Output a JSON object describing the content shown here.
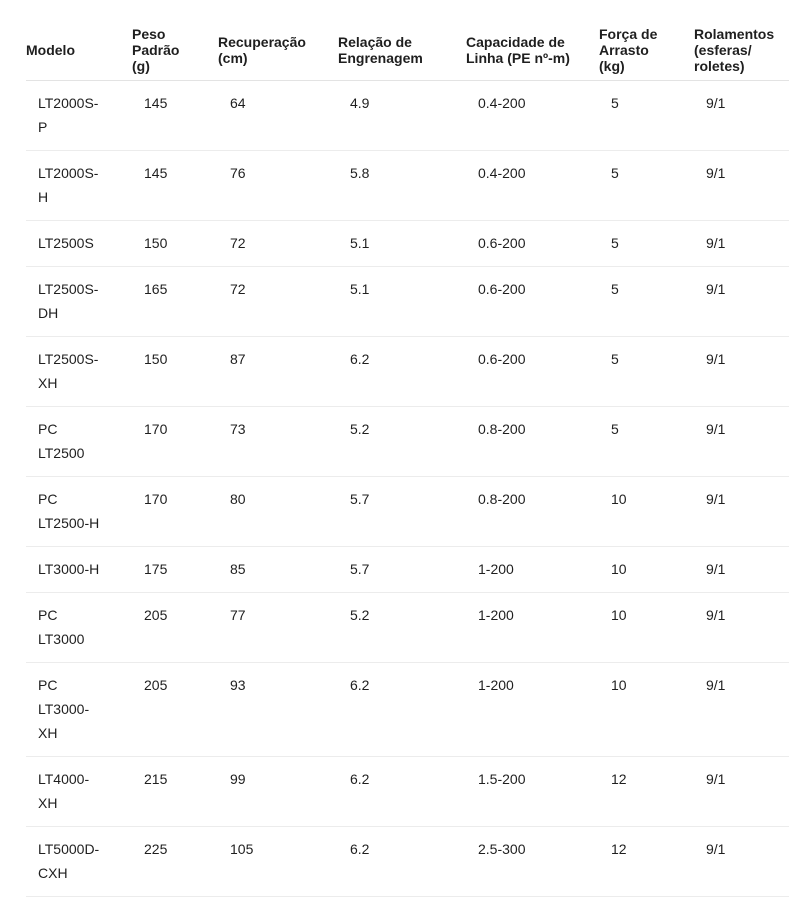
{
  "table": {
    "headers": [
      "Modelo",
      "Peso Padrão (g)",
      "Recuperação (cm)",
      "Relação de Engrenagem",
      "Capacidade de Linha (PE nº-m)",
      "Força de Arrasto (kg)",
      "Rolamentos (esferas/ roletes)"
    ],
    "rows": [
      [
        "LT2000S-P",
        "145",
        "64",
        "4.9",
        "0.4-200",
        "5",
        "9/1"
      ],
      [
        "LT2000S-H",
        "145",
        "76",
        "5.8",
        "0.4-200",
        "5",
        "9/1"
      ],
      [
        "LT2500S",
        "150",
        "72",
        "5.1",
        "0.6-200",
        "5",
        "9/1"
      ],
      [
        "LT2500S-DH",
        "165",
        "72",
        "5.1",
        "0.6-200",
        "5",
        "9/1"
      ],
      [
        "LT2500S-XH",
        "150",
        "87",
        "6.2",
        "0.6-200",
        "5",
        "9/1"
      ],
      [
        "PC LT2500",
        "170",
        "73",
        "5.2",
        "0.8-200",
        "5",
        "9/1"
      ],
      [
        "PC LT2500-H",
        "170",
        "80",
        "5.7",
        "0.8-200",
        "10",
        "9/1"
      ],
      [
        "LT3000-H",
        "175",
        "85",
        "5.7",
        "1-200",
        "10",
        "9/1"
      ],
      [
        "PC LT3000",
        "205",
        "77",
        "5.2",
        "1-200",
        "10",
        "9/1"
      ],
      [
        "PC LT3000-XH",
        "205",
        "93",
        "6.2",
        "1-200",
        "10",
        "9/1"
      ],
      [
        "LT4000-XH",
        "215",
        "99",
        "6.2",
        "1.5-200",
        "12",
        "9/1"
      ],
      [
        "LT5000D-CXH",
        "225",
        "105",
        "6.2",
        "2.5-300",
        "12",
        "9/1"
      ]
    ]
  }
}
